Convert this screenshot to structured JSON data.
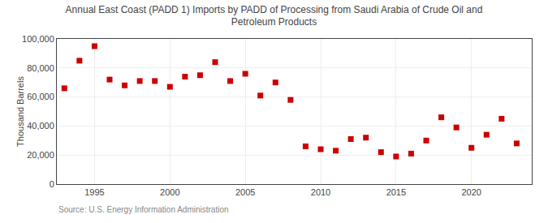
{
  "chart_data": {
    "type": "scatter",
    "title": "Annual East Coast (PADD 1) Imports by PADD of Processing from Saudi Arabia of Crude Oil and\nPetroleum Products",
    "ylabel": "Thousand Barrels",
    "annotations": [
      "Source: U.S. Energy Information Administration"
    ],
    "x": [
      1993,
      1994,
      1995,
      1996,
      1997,
      1998,
      1999,
      2000,
      2001,
      2002,
      2003,
      2004,
      2005,
      2006,
      2007,
      2008,
      2009,
      2010,
      2011,
      2012,
      2013,
      2014,
      2015,
      2016,
      2017,
      2018,
      2019,
      2020,
      2021,
      2022,
      2023
    ],
    "values": [
      66000,
      85000,
      95000,
      72000,
      68000,
      71000,
      71000,
      67000,
      74000,
      75000,
      84000,
      71000,
      76000,
      61000,
      70000,
      58000,
      26000,
      24000,
      23000,
      31000,
      32000,
      22000,
      19000,
      21000,
      30000,
      46000,
      39000,
      25000,
      34000,
      45000,
      28000
    ],
    "color": "#cc0000",
    "marker": "square",
    "xlim": [
      1992.5,
      2024
    ],
    "xticks": [
      1995,
      2000,
      2005,
      2010,
      2015,
      2020
    ],
    "ylim": [
      0,
      100000
    ],
    "yticks": [
      0,
      {
        "value": 20000,
        "label": "20,000"
      },
      {
        "value": 40000,
        "label": "40,000"
      },
      {
        "value": 60000,
        "label": "60,000"
      },
      {
        "value": 80000,
        "label": "80,000"
      },
      {
        "value": 100000,
        "label": "100,000"
      }
    ],
    "grid": true
  }
}
